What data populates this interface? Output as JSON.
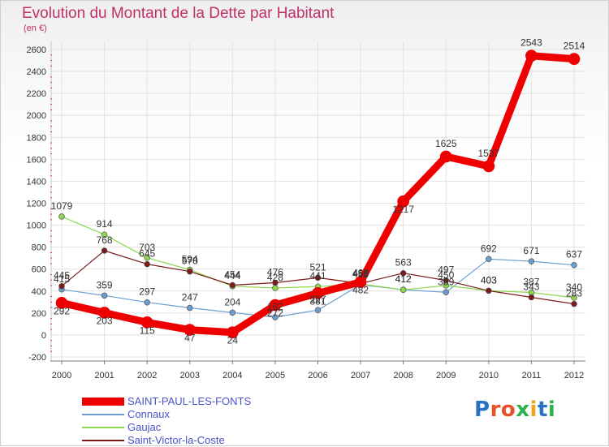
{
  "title": "Evolution du Montant de la Dette par Habitant",
  "unit": "(en €)",
  "brand": {
    "letters": [
      "P",
      "r",
      "o",
      "x",
      "i",
      "t",
      "i"
    ],
    "colors": [
      "#2a73c4",
      "#e8502a",
      "#e8502a",
      "#2bb24c",
      "#f0a51c",
      "#2a73c4",
      "#2bb24c"
    ]
  },
  "chart_data": {
    "type": "line",
    "x": [
      2000,
      2001,
      2002,
      2003,
      2004,
      2005,
      2006,
      2007,
      2008,
      2009,
      2010,
      2011,
      2012
    ],
    "ylim": [
      -200,
      2600
    ],
    "yticks": [
      -200,
      0,
      200,
      400,
      600,
      800,
      1000,
      1200,
      1400,
      1600,
      1800,
      2000,
      2200,
      2400,
      2600
    ],
    "grid": true,
    "legend_position": "bottom-left",
    "series": [
      {
        "name": "SAINT-PAUL-LES-FONTS",
        "color": "#ee0000",
        "width": 9,
        "values": [
          292,
          203,
          115,
          47,
          24,
          272,
          381,
          482,
          1217,
          1625,
          1537,
          2543,
          2514
        ],
        "labels": [
          "292",
          "203",
          "115",
          "47",
          "24",
          "272",
          "381",
          "482",
          "1217",
          "1625",
          "1537",
          "2543",
          "2514"
        ]
      },
      {
        "name": "Connaux",
        "color": "#6a9ed0",
        "width": 1.2,
        "values": [
          415,
          359,
          297,
          247,
          204,
          162,
          227,
          458,
          412,
          389,
          692,
          671,
          637
        ],
        "labels": [
          "415",
          "359",
          "297",
          "247",
          "204",
          "162",
          "227",
          "458",
          "412",
          "389",
          "692",
          "671",
          "637"
        ]
      },
      {
        "name": "Gaujac",
        "color": "#8ed850",
        "width": 1.2,
        "values": [
          1079,
          914,
          703,
          594,
          444,
          428,
          441,
          465,
          412,
          450,
          403,
          387,
          340
        ],
        "labels": [
          "1079",
          "914",
          "703",
          "594",
          "444",
          "428",
          "441",
          "465",
          "412",
          "450",
          "403",
          "387",
          "340"
        ]
      },
      {
        "name": "Saint-Victor-la-Coste",
        "color": "#7a1a1a",
        "width": 1.2,
        "values": [
          445,
          768,
          645,
          578,
          454,
          476,
          521,
          469,
          563,
          497,
          403,
          343,
          283
        ],
        "labels": [
          "445",
          "768",
          "645",
          "578",
          "454",
          "476",
          "521",
          "469",
          "563",
          "497",
          "403",
          "343",
          "283"
        ]
      }
    ]
  }
}
